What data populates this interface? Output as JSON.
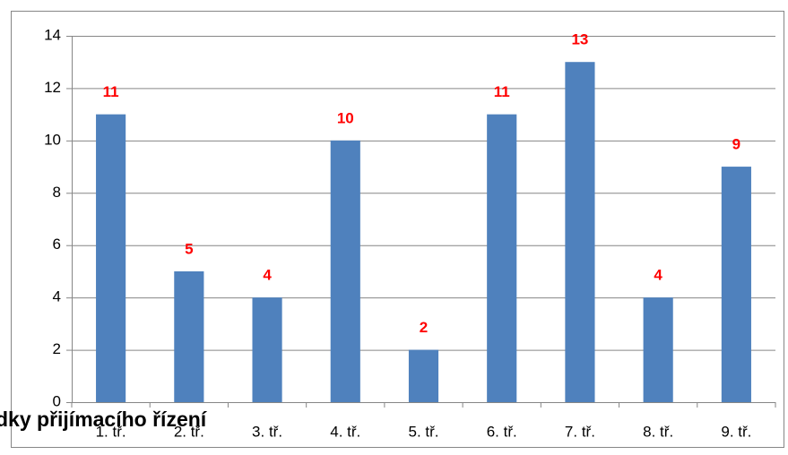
{
  "chart_data": {
    "type": "bar",
    "categories": [
      "1. tř.",
      "2. tř.",
      "3. tř.",
      "4. tř.",
      "5. tř.",
      "6. tř.",
      "7. tř.",
      "8. tř.",
      "9. tř."
    ],
    "values": [
      11,
      5,
      4,
      10,
      2,
      11,
      13,
      4,
      9
    ],
    "color": "#4f81bd",
    "value_label_color": "#ff0000",
    "ylim": [
      0,
      14
    ],
    "yticks": [
      0,
      2,
      4,
      6,
      8,
      10,
      12,
      14
    ],
    "grid": true,
    "annotation": "dky přijímacího řízení"
  }
}
